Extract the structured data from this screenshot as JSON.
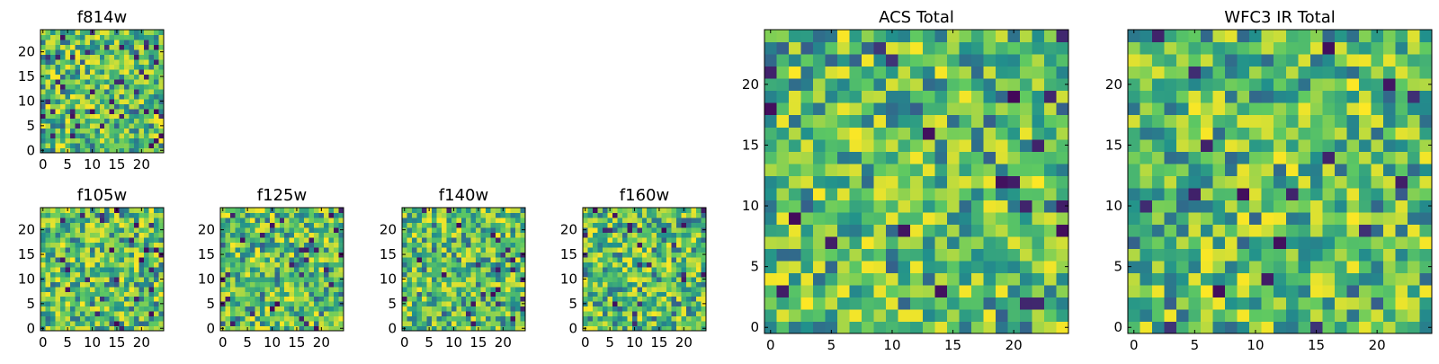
{
  "figure": {
    "colormap": "viridis",
    "colormap_stops": [
      "#440154",
      "#3b528b",
      "#21918c",
      "#5ec962",
      "#fde725"
    ],
    "frame_color": "#000000",
    "background": "#ffffff"
  },
  "chart_data": [
    {
      "id": "f814w",
      "type": "heatmap",
      "title": "f814w",
      "grid_size": 25,
      "value_range": [
        0,
        1
      ],
      "seed": 814,
      "x_ticks": [
        0,
        5,
        10,
        15,
        20
      ],
      "y_ticks": [
        0,
        5,
        10,
        15,
        20
      ],
      "xlim": [
        -0.5,
        24.5
      ],
      "ylim": [
        -0.5,
        24.5
      ],
      "x_tick_labels": [
        "0",
        "5",
        "10",
        "15",
        "20"
      ],
      "y_tick_labels": [
        "0",
        "5",
        "10",
        "15",
        "20"
      ]
    },
    {
      "id": "f105w",
      "type": "heatmap",
      "title": "f105w",
      "grid_size": 25,
      "value_range": [
        0,
        1
      ],
      "seed": 105,
      "x_ticks": [
        0,
        5,
        10,
        15,
        20
      ],
      "y_ticks": [
        0,
        5,
        10,
        15,
        20
      ],
      "xlim": [
        -0.5,
        24.5
      ],
      "ylim": [
        -0.5,
        24.5
      ],
      "x_tick_labels": [
        "0",
        "5",
        "10",
        "15",
        "20"
      ],
      "y_tick_labels": [
        "0",
        "5",
        "10",
        "15",
        "20"
      ]
    },
    {
      "id": "f125w",
      "type": "heatmap",
      "title": "f125w",
      "grid_size": 25,
      "value_range": [
        0,
        1
      ],
      "seed": 125,
      "x_ticks": [
        0,
        5,
        10,
        15,
        20
      ],
      "y_ticks": [
        0,
        5,
        10,
        15,
        20
      ],
      "xlim": [
        -0.5,
        24.5
      ],
      "ylim": [
        -0.5,
        24.5
      ],
      "x_tick_labels": [
        "0",
        "5",
        "10",
        "15",
        "20"
      ],
      "y_tick_labels": [
        "0",
        "5",
        "10",
        "15",
        "20"
      ]
    },
    {
      "id": "f140w",
      "type": "heatmap",
      "title": "f140w",
      "grid_size": 25,
      "value_range": [
        0,
        1
      ],
      "seed": 140,
      "x_ticks": [
        0,
        5,
        10,
        15,
        20
      ],
      "y_ticks": [
        0,
        5,
        10,
        15,
        20
      ],
      "xlim": [
        -0.5,
        24.5
      ],
      "ylim": [
        -0.5,
        24.5
      ],
      "x_tick_labels": [
        "0",
        "5",
        "10",
        "15",
        "20"
      ],
      "y_tick_labels": [
        "0",
        "5",
        "10",
        "15",
        "20"
      ]
    },
    {
      "id": "f160w",
      "type": "heatmap",
      "title": "f160w",
      "grid_size": 25,
      "value_range": [
        0,
        1
      ],
      "seed": 160,
      "x_ticks": [
        0,
        5,
        10,
        15,
        20
      ],
      "y_ticks": [
        0,
        5,
        10,
        15,
        20
      ],
      "xlim": [
        -0.5,
        24.5
      ],
      "ylim": [
        -0.5,
        24.5
      ],
      "x_tick_labels": [
        "0",
        "5",
        "10",
        "15",
        "20"
      ],
      "y_tick_labels": [
        "0",
        "5",
        "10",
        "15",
        "20"
      ]
    },
    {
      "id": "acs-total",
      "type": "heatmap",
      "title": "ACS Total",
      "grid_size": 25,
      "value_range": [
        0,
        1
      ],
      "seed": 2001,
      "x_ticks": [
        0,
        5,
        10,
        15,
        20
      ],
      "y_ticks": [
        0,
        5,
        10,
        15,
        20
      ],
      "xlim": [
        -0.5,
        24.5
      ],
      "ylim": [
        -0.5,
        24.5
      ],
      "x_tick_labels": [
        "0",
        "5",
        "10",
        "15",
        "20"
      ],
      "y_tick_labels": [
        "0",
        "5",
        "10",
        "15",
        "20"
      ]
    },
    {
      "id": "wfc3-ir-total",
      "type": "heatmap",
      "title": "WFC3 IR Total",
      "grid_size": 25,
      "value_range": [
        0,
        1
      ],
      "seed": 3003,
      "x_ticks": [
        0,
        5,
        10,
        15,
        20
      ],
      "y_ticks": [
        0,
        5,
        10,
        15,
        20
      ],
      "xlim": [
        -0.5,
        24.5
      ],
      "ylim": [
        -0.5,
        24.5
      ],
      "x_tick_labels": [
        "0",
        "5",
        "10",
        "15",
        "20"
      ],
      "y_tick_labels": [
        "0",
        "5",
        "10",
        "15",
        "20"
      ]
    }
  ]
}
